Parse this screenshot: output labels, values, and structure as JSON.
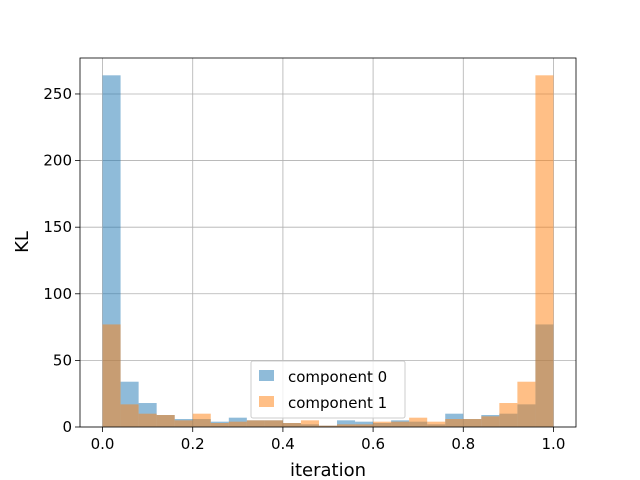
{
  "chart_data": {
    "type": "bar",
    "histogram": true,
    "title": "",
    "xlabel": "iteration",
    "ylabel": "KL",
    "xlim": [
      -0.05,
      1.05
    ],
    "ylim": [
      0,
      277
    ],
    "grid": true,
    "legend_position": "lower center",
    "x_ticks": [
      "0.0",
      "0.2",
      "0.4",
      "0.6",
      "0.8",
      "1.0"
    ],
    "y_ticks": [
      "0",
      "50",
      "100",
      "150",
      "200",
      "250"
    ],
    "bin_edges": [
      0.0,
      0.04,
      0.08,
      0.12,
      0.16,
      0.2,
      0.24,
      0.28,
      0.32,
      0.36,
      0.4,
      0.44,
      0.48,
      0.52,
      0.56,
      0.6,
      0.64,
      0.68,
      0.72,
      0.76,
      0.8,
      0.84,
      0.88,
      0.92,
      0.96,
      1.0
    ],
    "series": [
      {
        "name": "component 0",
        "color": "#1f77b4",
        "alpha": 0.5,
        "values": [
          264,
          34,
          18,
          9,
          6,
          6,
          4,
          7,
          5,
          5,
          3,
          2,
          1,
          5,
          4,
          3,
          5,
          4,
          2,
          10,
          6,
          9,
          10,
          17,
          77
        ]
      },
      {
        "name": "component 1",
        "color": "#ff7f0e",
        "alpha": 0.5,
        "values": [
          77,
          17,
          10,
          9,
          5,
          10,
          3,
          4,
          5,
          5,
          3,
          5,
          1,
          2,
          2,
          4,
          4,
          7,
          4,
          6,
          6,
          8,
          18,
          34,
          264
        ]
      }
    ]
  }
}
